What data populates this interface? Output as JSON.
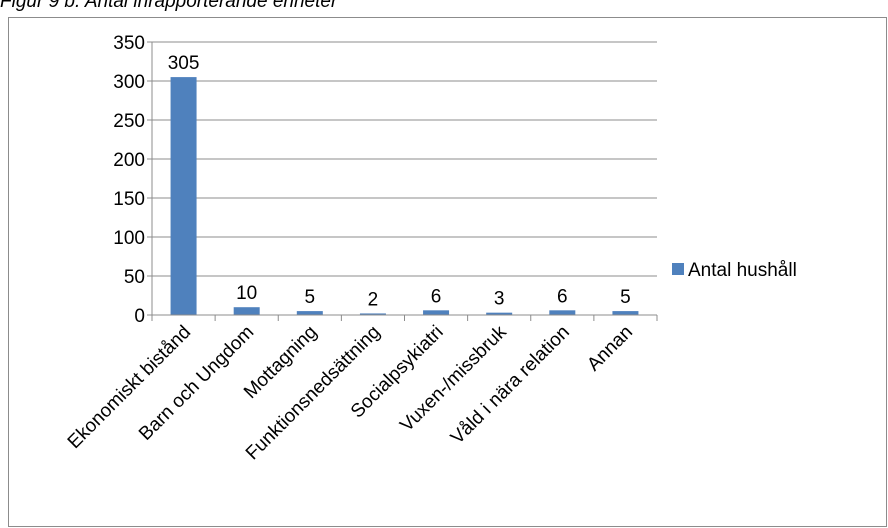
{
  "figure": {
    "title": "Figur 9 b. Antal inrapporterande enheter"
  },
  "chart_data": {
    "type": "bar",
    "title": "",
    "xlabel": "",
    "ylabel": "",
    "categories": [
      "Ekonomiskt bistånd",
      "Barn och Ungdom",
      "Mottagning",
      "Funktionsnedsättning",
      "Socialpsykiatri",
      "Vuxen-/missbruk",
      "Våld i nära relation",
      "Annan"
    ],
    "series": [
      {
        "name": "Antal hushåll",
        "values": [
          305,
          10,
          5,
          2,
          6,
          3,
          6,
          5
        ],
        "color": "#4f81bd"
      }
    ],
    "ylim": [
      0,
      350
    ],
    "yticks": [
      0,
      50,
      100,
      150,
      200,
      250,
      300,
      350
    ],
    "grid": true,
    "legend": "right"
  }
}
